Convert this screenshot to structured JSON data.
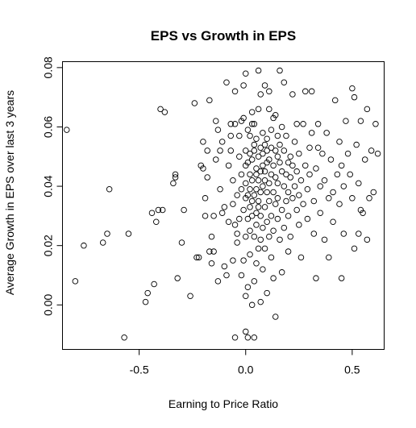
{
  "chart_data": {
    "type": "scatter",
    "title": "EPS vs Growth in EPS",
    "xlabel": "Earning to Price Ratio",
    "ylabel": "Average Growth in EPS over last 3 years",
    "xlim": [
      -0.86,
      0.65
    ],
    "ylim": [
      -0.015,
      0.082
    ],
    "x_ticks": [
      -0.5,
      0.0,
      0.5
    ],
    "x_tick_labels": [
      "-0.5",
      "0.0",
      "0.5"
    ],
    "y_ticks": [
      0.0,
      0.02,
      0.04,
      0.06,
      0.08
    ],
    "y_tick_labels": [
      "0.00",
      "0.02",
      "0.04",
      "0.06",
      "0.08"
    ],
    "grid": false,
    "legend": "none",
    "marker": "open-circle",
    "points": [
      [
        -0.84,
        0.059
      ],
      [
        -0.8,
        0.008
      ],
      [
        -0.76,
        0.02
      ],
      [
        -0.67,
        0.021
      ],
      [
        -0.65,
        0.024
      ],
      [
        -0.64,
        0.039
      ],
      [
        -0.57,
        -0.011
      ],
      [
        -0.55,
        0.024
      ],
      [
        -0.47,
        0.001
      ],
      [
        -0.46,
        0.004
      ],
      [
        -0.44,
        0.031
      ],
      [
        -0.43,
        0.007
      ],
      [
        -0.42,
        0.028
      ],
      [
        -0.41,
        0.032
      ],
      [
        -0.4,
        0.066
      ],
      [
        -0.39,
        0.032
      ],
      [
        -0.38,
        0.065
      ],
      [
        -0.34,
        0.041
      ],
      [
        -0.33,
        0.044
      ],
      [
        -0.33,
        0.043
      ],
      [
        -0.32,
        0.009
      ],
      [
        -0.3,
        0.021
      ],
      [
        -0.29,
        0.032
      ],
      [
        -0.26,
        0.003
      ],
      [
        -0.24,
        0.068
      ],
      [
        -0.23,
        0.016
      ],
      [
        -0.22,
        0.016
      ],
      [
        -0.21,
        0.047
      ],
      [
        -0.2,
        0.046
      ],
      [
        -0.2,
        0.055
      ],
      [
        -0.19,
        0.036
      ],
      [
        -0.19,
        0.03
      ],
      [
        -0.18,
        0.052
      ],
      [
        -0.18,
        0.043
      ],
      [
        -0.17,
        0.069
      ],
      [
        -0.17,
        0.018
      ],
      [
        -0.16,
        0.014
      ],
      [
        -0.16,
        0.023
      ],
      [
        -0.15,
        0.018
      ],
      [
        -0.15,
        0.03
      ],
      [
        -0.14,
        0.049
      ],
      [
        -0.14,
        0.062
      ],
      [
        -0.13,
        0.059
      ],
      [
        -0.13,
        0.008
      ],
      [
        -0.12,
        0.039
      ],
      [
        -0.12,
        0.052
      ],
      [
        -0.11,
        0.031
      ],
      [
        -0.11,
        0.055
      ],
      [
        -0.1,
        0.013
      ],
      [
        -0.1,
        0.033
      ],
      [
        -0.09,
        0.075
      ],
      [
        -0.09,
        0.01
      ],
      [
        -0.08,
        0.028
      ],
      [
        -0.08,
        0.047
      ],
      [
        -0.07,
        0.057
      ],
      [
        -0.07,
        0.052
      ],
      [
        -0.07,
        0.061
      ],
      [
        -0.06,
        0.042
      ],
      [
        -0.06,
        0.034
      ],
      [
        -0.06,
        0.015
      ],
      [
        -0.05,
        0.072
      ],
      [
        -0.05,
        0.027
      ],
      [
        -0.05,
        -0.011
      ],
      [
        -0.05,
        0.061
      ],
      [
        -0.04,
        0.021
      ],
      [
        -0.04,
        0.037
      ],
      [
        -0.04,
        0.024
      ],
      [
        -0.03,
        0.05
      ],
      [
        -0.03,
        0.029
      ],
      [
        -0.03,
        0.057
      ],
      [
        -0.02,
        0.044
      ],
      [
        -0.02,
        0.062
      ],
      [
        -0.02,
        0.01
      ],
      [
        -0.02,
        0.039
      ],
      [
        -0.01,
        0.074
      ],
      [
        -0.01,
        0.063
      ],
      [
        -0.01,
        0.032
      ],
      [
        -0.01,
        0.015
      ],
      [
        0.0,
        0.052
      ],
      [
        0.0,
        0.036
      ],
      [
        0.0,
        0.078
      ],
      [
        0.0,
        0.041
      ],
      [
        0.0,
        0.003
      ],
      [
        0.0,
        0.023
      ],
      [
        0.0,
        0.047
      ],
      [
        0.0,
        -0.009
      ],
      [
        0.01,
        0.059
      ],
      [
        0.01,
        0.048
      ],
      [
        0.01,
        0.029
      ],
      [
        0.01,
        0.037
      ],
      [
        0.01,
        0.006
      ],
      [
        0.01,
        -0.011
      ],
      [
        0.02,
        0.057
      ],
      [
        0.02,
        0.033
      ],
      [
        0.02,
        0.051
      ],
      [
        0.02,
        0.044
      ],
      [
        0.02,
        0.039
      ],
      [
        0.02,
        0.025
      ],
      [
        0.02,
        0.017
      ],
      [
        0.03,
        0.061
      ],
      [
        0.03,
        0.065
      ],
      [
        0.03,
        0.03
      ],
      [
        0.03,
        0.049
      ],
      [
        0.03,
        0.035
      ],
      [
        0.03,
        0.0
      ],
      [
        0.03,
        0.042
      ],
      [
        0.04,
        0.052
      ],
      [
        0.04,
        0.037
      ],
      [
        0.04,
        0.054
      ],
      [
        0.04,
        0.023
      ],
      [
        0.04,
        0.061
      ],
      [
        0.04,
        0.008
      ],
      [
        0.04,
        -0.011
      ],
      [
        0.05,
        0.044
      ],
      [
        0.05,
        0.031
      ],
      [
        0.05,
        0.056
      ],
      [
        0.05,
        0.027
      ],
      [
        0.05,
        0.039
      ],
      [
        0.05,
        0.046
      ],
      [
        0.05,
        0.014
      ],
      [
        0.06,
        0.079
      ],
      [
        0.06,
        0.05
      ],
      [
        0.06,
        0.035
      ],
      [
        0.06,
        0.019
      ],
      [
        0.06,
        0.066
      ],
      [
        0.06,
        0.042
      ],
      [
        0.06,
        0.033
      ],
      [
        0.07,
        0.053
      ],
      [
        0.07,
        0.03
      ],
      [
        0.07,
        0.045
      ],
      [
        0.07,
        0.071
      ],
      [
        0.07,
        0.022
      ],
      [
        0.07,
        0.001
      ],
      [
        0.07,
        0.038
      ],
      [
        0.08,
        0.058
      ],
      [
        0.08,
        0.047
      ],
      [
        0.08,
        0.04
      ],
      [
        0.08,
        0.026
      ],
      [
        0.08,
        0.051
      ],
      [
        0.08,
        0.012
      ],
      [
        0.09,
        0.042
      ],
      [
        0.09,
        0.054
      ],
      [
        0.09,
        0.033
      ],
      [
        0.09,
        0.074
      ],
      [
        0.09,
        0.019
      ],
      [
        0.09,
        0.045
      ],
      [
        0.1,
        0.048
      ],
      [
        0.1,
        0.038
      ],
      [
        0.1,
        0.056
      ],
      [
        0.1,
        0.028
      ],
      [
        0.1,
        0.004
      ],
      [
        0.1,
        0.052
      ],
      [
        0.11,
        0.066
      ],
      [
        0.11,
        0.041
      ],
      [
        0.11,
        0.049
      ],
      [
        0.11,
        0.035
      ],
      [
        0.11,
        0.023
      ],
      [
        0.11,
        0.072
      ],
      [
        0.12,
        0.044
      ],
      [
        0.12,
        0.053
      ],
      [
        0.12,
        0.03
      ],
      [
        0.12,
        0.059
      ],
      [
        0.12,
        0.016
      ],
      [
        0.13,
        0.047
      ],
      [
        0.13,
        0.038
      ],
      [
        0.13,
        0.063
      ],
      [
        0.13,
        0.025
      ],
      [
        0.13,
        0.009
      ],
      [
        0.14,
        0.052
      ],
      [
        0.14,
        0.043
      ],
      [
        0.14,
        0.034
      ],
      [
        0.14,
        0.064
      ],
      [
        0.14,
        -0.004
      ],
      [
        0.15,
        0.05
      ],
      [
        0.15,
        0.057
      ],
      [
        0.15,
        0.029
      ],
      [
        0.15,
        0.041
      ],
      [
        0.15,
        0.036
      ],
      [
        0.16,
        0.079
      ],
      [
        0.16,
        0.048
      ],
      [
        0.16,
        0.022
      ],
      [
        0.16,
        0.054
      ],
      [
        0.17,
        0.032
      ],
      [
        0.17,
        0.045
      ],
      [
        0.17,
        0.06
      ],
      [
        0.17,
        0.011
      ],
      [
        0.18,
        0.04
      ],
      [
        0.18,
        0.052
      ],
      [
        0.18,
        0.026
      ],
      [
        0.18,
        0.075
      ],
      [
        0.19,
        0.044
      ],
      [
        0.19,
        0.035
      ],
      [
        0.19,
        0.057
      ],
      [
        0.2,
        0.048
      ],
      [
        0.2,
        0.03
      ],
      [
        0.2,
        0.038
      ],
      [
        0.2,
        0.018
      ],
      [
        0.21,
        0.05
      ],
      [
        0.21,
        0.043
      ],
      [
        0.21,
        0.023
      ],
      [
        0.22,
        0.036
      ],
      [
        0.22,
        0.047
      ],
      [
        0.22,
        0.071
      ],
      [
        0.23,
        0.04
      ],
      [
        0.23,
        0.055
      ],
      [
        0.24,
        0.061
      ],
      [
        0.24,
        0.032
      ],
      [
        0.24,
        0.045
      ],
      [
        0.25,
        0.037
      ],
      [
        0.25,
        0.027
      ],
      [
        0.25,
        0.051
      ],
      [
        0.26,
        0.042
      ],
      [
        0.26,
        0.016
      ],
      [
        0.27,
        0.034
      ],
      [
        0.27,
        0.061
      ],
      [
        0.28,
        0.072
      ],
      [
        0.28,
        0.047
      ],
      [
        0.29,
        0.039
      ],
      [
        0.29,
        0.029
      ],
      [
        0.3,
        0.053
      ],
      [
        0.3,
        0.044
      ],
      [
        0.31,
        0.072
      ],
      [
        0.31,
        0.058
      ],
      [
        0.32,
        0.035
      ],
      [
        0.32,
        0.024
      ],
      [
        0.33,
        0.046
      ],
      [
        0.33,
        0.009
      ],
      [
        0.34,
        0.061
      ],
      [
        0.34,
        0.053
      ],
      [
        0.35,
        0.04
      ],
      [
        0.35,
        0.031
      ],
      [
        0.36,
        0.051
      ],
      [
        0.37,
        0.042
      ],
      [
        0.37,
        0.022
      ],
      [
        0.38,
        0.058
      ],
      [
        0.39,
        0.036
      ],
      [
        0.39,
        0.016
      ],
      [
        0.4,
        0.049
      ],
      [
        0.41,
        0.038
      ],
      [
        0.41,
        0.028
      ],
      [
        0.42,
        0.069
      ],
      [
        0.43,
        0.044
      ],
      [
        0.44,
        0.055
      ],
      [
        0.44,
        0.034
      ],
      [
        0.45,
        0.047
      ],
      [
        0.45,
        0.009
      ],
      [
        0.46,
        0.04
      ],
      [
        0.46,
        0.024
      ],
      [
        0.47,
        0.062
      ],
      [
        0.48,
        0.051
      ],
      [
        0.49,
        0.044
      ],
      [
        0.5,
        0.073
      ],
      [
        0.5,
        0.036
      ],
      [
        0.51,
        0.019
      ],
      [
        0.51,
        0.07
      ],
      [
        0.52,
        0.054
      ],
      [
        0.53,
        0.041
      ],
      [
        0.53,
        0.024
      ],
      [
        0.54,
        0.062
      ],
      [
        0.54,
        0.032
      ],
      [
        0.55,
        0.031
      ],
      [
        0.56,
        0.049
      ],
      [
        0.57,
        0.066
      ],
      [
        0.57,
        0.022
      ],
      [
        0.58,
        0.036
      ],
      [
        0.59,
        0.052
      ],
      [
        0.6,
        0.038
      ],
      [
        0.61,
        0.061
      ],
      [
        0.62,
        0.051
      ]
    ]
  }
}
